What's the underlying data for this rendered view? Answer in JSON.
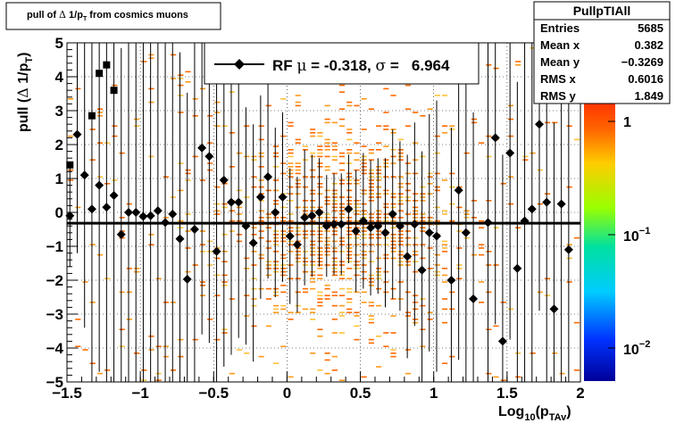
{
  "title": {
    "prefix": "pull of ",
    "delta": "Δ",
    "mid": " 1/p",
    "sub": "T",
    "suffix": " from cosmics muons"
  },
  "stats": {
    "name": "PullpTIAll",
    "rows": [
      {
        "label": "Entries",
        "value": "5685"
      },
      {
        "label": "Mean x",
        "value": "0.382"
      },
      {
        "label": "Mean y",
        "value": "−0.3269"
      },
      {
        "label": "RMS x",
        "value": "0.6016"
      },
      {
        "label": "RMS y",
        "value": "1.849"
      }
    ]
  },
  "legend": {
    "prefix": "RF ",
    "mu": "μ",
    "mid": " = -0.318, ",
    "sigma": "σ",
    "suffix": " =   6.964"
  },
  "axes": {
    "y_title_prefix": "pull (",
    "y_title_delta": "Δ",
    "y_title_mid": " 1/p",
    "y_title_sub": "T",
    "y_title_suffix": ")",
    "x_title_prefix": "Log",
    "x_title_sub1": "10",
    "x_title_mid": "(p",
    "x_title_sub2": "TAv",
    "x_title_suffix": ")",
    "x_ticks": [
      "−1.5",
      "−1",
      "−0.5",
      "0",
      "0.5",
      "1",
      "1.5",
      "2"
    ],
    "y_ticks": [
      "−5",
      "−4",
      "−3",
      "−2",
      "−1",
      "0",
      "1",
      "2",
      "3",
      "4",
      "5"
    ]
  },
  "palette": {
    "labels": [
      {
        "base": "1",
        "exp": ""
      },
      {
        "base": "10",
        "exp": "−1"
      },
      {
        "base": "10",
        "exp": "−2"
      }
    ]
  },
  "chart_data": {
    "type": "scatter",
    "xlim": [
      -1.5,
      2.0
    ],
    "ylim": [
      -5,
      5
    ],
    "z_log": true,
    "grid": true,
    "fit_line": {
      "y": -0.318
    },
    "profile_points": [
      {
        "x": -1.48,
        "y": -0.1,
        "err": 1.5
      },
      {
        "x": -1.43,
        "y": 2.3,
        "err": 3.5
      },
      {
        "x": -1.38,
        "y": 1.1,
        "err": 4.5
      },
      {
        "x": -1.33,
        "y": 0.1,
        "err": 5.5
      },
      {
        "x": -1.28,
        "y": 0.8,
        "err": 5.5
      },
      {
        "x": -1.23,
        "y": 0.15,
        "err": 5.5
      },
      {
        "x": -1.18,
        "y": 0.5,
        "err": 5.5
      },
      {
        "x": -1.13,
        "y": -0.65,
        "err": 5.5
      },
      {
        "x": -1.08,
        "y": 0.0,
        "err": 5.5
      },
      {
        "x": -1.03,
        "y": 0.0,
        "err": 5.5
      },
      {
        "x": -0.98,
        "y": -0.12,
        "err": 5.5
      },
      {
        "x": -0.93,
        "y": -0.1,
        "err": 5.5
      },
      {
        "x": -0.88,
        "y": 0.05,
        "err": 5.5
      },
      {
        "x": -0.83,
        "y": -0.3,
        "err": 5.5
      },
      {
        "x": -0.78,
        "y": -0.05,
        "err": 5.5
      },
      {
        "x": -0.73,
        "y": -0.78,
        "err": 5.5
      },
      {
        "x": -0.68,
        "y": -1.97,
        "err": 5.5
      },
      {
        "x": -0.63,
        "y": -0.5,
        "err": 5.5
      },
      {
        "x": -0.58,
        "y": 1.9,
        "err": 5.5
      },
      {
        "x": -0.53,
        "y": 1.65,
        "err": 5.5
      },
      {
        "x": -0.48,
        "y": -1.15,
        "err": 5.5
      },
      {
        "x": -0.43,
        "y": 0.95,
        "err": 5.5
      },
      {
        "x": -0.38,
        "y": 0.3,
        "err": 4.5
      },
      {
        "x": -0.33,
        "y": 0.3,
        "err": 4.0
      },
      {
        "x": -0.28,
        "y": -0.4,
        "err": 3.5
      },
      {
        "x": -0.23,
        "y": -0.9,
        "err": 3.5
      },
      {
        "x": -0.18,
        "y": 0.45,
        "err": 3.0
      },
      {
        "x": -0.13,
        "y": 1.05,
        "err": 3.0
      },
      {
        "x": -0.08,
        "y": 0.0,
        "err": 2.5
      },
      {
        "x": -0.03,
        "y": 0.45,
        "err": 2.5
      },
      {
        "x": 0.02,
        "y": -0.7,
        "err": 2.0
      },
      {
        "x": 0.07,
        "y": -0.95,
        "err": 2.0
      },
      {
        "x": 0.12,
        "y": -0.15,
        "err": 2.0
      },
      {
        "x": 0.17,
        "y": -0.1,
        "err": 1.8
      },
      {
        "x": 0.22,
        "y": 0.0,
        "err": 1.6
      },
      {
        "x": 0.27,
        "y": -0.4,
        "err": 1.5
      },
      {
        "x": 0.32,
        "y": -0.35,
        "err": 1.5
      },
      {
        "x": 0.37,
        "y": -0.35,
        "err": 1.5
      },
      {
        "x": 0.42,
        "y": 0.1,
        "err": 1.6
      },
      {
        "x": 0.47,
        "y": -0.55,
        "err": 1.8
      },
      {
        "x": 0.52,
        "y": -0.25,
        "err": 2.0
      },
      {
        "x": 0.57,
        "y": -0.45,
        "err": 2.0
      },
      {
        "x": 0.62,
        "y": -0.4,
        "err": 2.0
      },
      {
        "x": 0.67,
        "y": -0.6,
        "err": 2.2
      },
      {
        "x": 0.72,
        "y": -0.05,
        "err": 2.5
      },
      {
        "x": 0.77,
        "y": -0.4,
        "err": 2.5
      },
      {
        "x": 0.82,
        "y": -1.3,
        "err": 3.0
      },
      {
        "x": 0.87,
        "y": -0.35,
        "err": 3.0
      },
      {
        "x": 0.92,
        "y": -1.7,
        "err": 3.5
      },
      {
        "x": 0.97,
        "y": -0.6,
        "err": 3.5
      },
      {
        "x": 1.02,
        "y": -0.7,
        "err": 4.0
      },
      {
        "x": 1.12,
        "y": -2.0,
        "err": 4.5
      },
      {
        "x": 1.17,
        "y": 0.65,
        "err": 5.0
      },
      {
        "x": 1.22,
        "y": -0.6,
        "err": 5.0
      },
      {
        "x": 1.27,
        "y": -2.55,
        "err": 5.5
      },
      {
        "x": 1.37,
        "y": -0.3,
        "err": 5.5
      },
      {
        "x": 1.42,
        "y": 2.2,
        "err": 5.5
      },
      {
        "x": 1.47,
        "y": -3.8,
        "err": 5.5
      },
      {
        "x": 1.52,
        "y": 1.75,
        "err": 5.5
      },
      {
        "x": 1.57,
        "y": -1.65,
        "err": 5.5
      },
      {
        "x": 1.62,
        "y": -0.25,
        "err": 5.5
      },
      {
        "x": 1.67,
        "y": 0.1,
        "err": 5.5
      },
      {
        "x": 1.72,
        "y": 2.6,
        "err": 5.5
      },
      {
        "x": 1.77,
        "y": 0.3,
        "err": 5.5
      },
      {
        "x": 1.82,
        "y": -2.85,
        "err": 5.5
      },
      {
        "x": 1.87,
        "y": 0.25,
        "err": 5.5
      },
      {
        "x": 1.92,
        "y": -1.1,
        "err": 5.5
      }
    ],
    "square_points": [
      {
        "x": -1.48,
        "y": 1.4
      },
      {
        "x": -1.33,
        "y": 2.85
      },
      {
        "x": -1.28,
        "y": 4.1
      },
      {
        "x": -1.23,
        "y": 4.35
      },
      {
        "x": -1.18,
        "y": 3.6
      }
    ]
  }
}
